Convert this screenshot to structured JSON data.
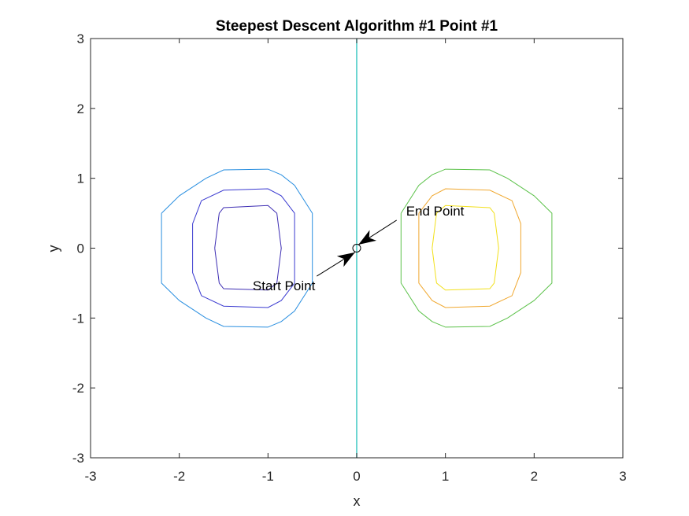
{
  "chart_data": {
    "type": "line",
    "title": "Steepest Descent Algorithm #1 Point #1",
    "xlabel": "x",
    "ylabel": "y",
    "xlim": [
      -3,
      3
    ],
    "ylim": [
      -3,
      3
    ],
    "xticks": [
      "-3",
      "-2",
      "-1",
      "0",
      "1",
      "2",
      "3"
    ],
    "yticks": [
      "3",
      "2",
      "1",
      "0",
      "-1",
      "-2",
      "-3"
    ],
    "grid": false,
    "contours": [
      {
        "name": "",
        "color": "#2a8fe0",
        "points": [
          [
            -2.2,
            0.5
          ],
          [
            -2.0,
            0.75
          ],
          [
            -1.7,
            1.0
          ],
          [
            -1.5,
            1.12
          ],
          [
            -1.0,
            1.13
          ],
          [
            -0.85,
            1.05
          ],
          [
            -0.7,
            0.9
          ],
          [
            -0.5,
            0.5
          ],
          [
            -0.5,
            -0.5
          ],
          [
            -0.7,
            -0.9
          ],
          [
            -0.85,
            -1.05
          ],
          [
            -1.0,
            -1.13
          ],
          [
            -1.5,
            -1.12
          ],
          [
            -1.7,
            -1.0
          ],
          [
            -2.0,
            -0.75
          ],
          [
            -2.2,
            -0.5
          ],
          [
            -2.2,
            0.5
          ]
        ]
      },
      {
        "name": "",
        "color": "#3a3ad0",
        "points": [
          [
            -1.85,
            0.35
          ],
          [
            -1.75,
            0.68
          ],
          [
            -1.5,
            0.83
          ],
          [
            -1.0,
            0.85
          ],
          [
            -0.85,
            0.75
          ],
          [
            -0.7,
            0.5
          ],
          [
            -0.7,
            -0.5
          ],
          [
            -0.85,
            -0.75
          ],
          [
            -1.0,
            -0.85
          ],
          [
            -1.5,
            -0.83
          ],
          [
            -1.75,
            -0.68
          ],
          [
            -1.85,
            -0.35
          ],
          [
            -1.85,
            0.35
          ]
        ]
      },
      {
        "name": "",
        "color": "#3d2db3",
        "points": [
          [
            -1.6,
            0.0
          ],
          [
            -1.55,
            0.5
          ],
          [
            -1.5,
            0.58
          ],
          [
            -1.0,
            0.61
          ],
          [
            -0.9,
            0.5
          ],
          [
            -0.85,
            0.0
          ],
          [
            -0.9,
            -0.5
          ],
          [
            -1.0,
            -0.6
          ],
          [
            -1.5,
            -0.58
          ],
          [
            -1.55,
            -0.5
          ],
          [
            -1.6,
            0.0
          ]
        ]
      },
      {
        "name": "",
        "color": "#5cc24a",
        "points": [
          [
            0.5,
            0.5
          ],
          [
            0.7,
            0.9
          ],
          [
            0.85,
            1.05
          ],
          [
            1.0,
            1.13
          ],
          [
            1.5,
            1.12
          ],
          [
            1.7,
            1.0
          ],
          [
            2.0,
            0.75
          ],
          [
            2.2,
            0.5
          ],
          [
            2.2,
            -0.5
          ],
          [
            2.0,
            -0.75
          ],
          [
            1.7,
            -1.0
          ],
          [
            1.5,
            -1.12
          ],
          [
            1.0,
            -1.13
          ],
          [
            0.85,
            -1.05
          ],
          [
            0.7,
            -0.9
          ],
          [
            0.5,
            -0.5
          ],
          [
            0.5,
            0.5
          ]
        ]
      },
      {
        "name": "",
        "color": "#f0a830",
        "points": [
          [
            0.7,
            0.5
          ],
          [
            0.85,
            0.75
          ],
          [
            1.0,
            0.85
          ],
          [
            1.5,
            0.83
          ],
          [
            1.75,
            0.68
          ],
          [
            1.85,
            0.35
          ],
          [
            1.85,
            -0.35
          ],
          [
            1.75,
            -0.68
          ],
          [
            1.5,
            -0.83
          ],
          [
            1.0,
            -0.85
          ],
          [
            0.85,
            -0.75
          ],
          [
            0.7,
            -0.5
          ],
          [
            0.7,
            0.5
          ]
        ]
      },
      {
        "name": "",
        "color": "#f2e01a",
        "points": [
          [
            0.85,
            0.0
          ],
          [
            0.9,
            0.5
          ],
          [
            1.0,
            0.61
          ],
          [
            1.5,
            0.58
          ],
          [
            1.55,
            0.5
          ],
          [
            1.6,
            0.0
          ],
          [
            1.55,
            -0.5
          ],
          [
            1.5,
            -0.58
          ],
          [
            1.0,
            -0.6
          ],
          [
            0.9,
            -0.5
          ],
          [
            0.85,
            0.0
          ]
        ]
      },
      {
        "name": "",
        "color": "#3ec9c4",
        "points": [
          [
            0,
            -3
          ],
          [
            0,
            3
          ]
        ]
      }
    ],
    "annotations": [
      {
        "text": "Start Point",
        "from": [
          -0.45,
          -0.4
        ],
        "to": [
          -0.02,
          -0.06
        ]
      },
      {
        "text": "End Point",
        "from": [
          0.45,
          0.4
        ],
        "to": [
          0.02,
          0.05
        ]
      }
    ],
    "marker": {
      "x": 0,
      "y": 0,
      "shape": "circle"
    }
  }
}
